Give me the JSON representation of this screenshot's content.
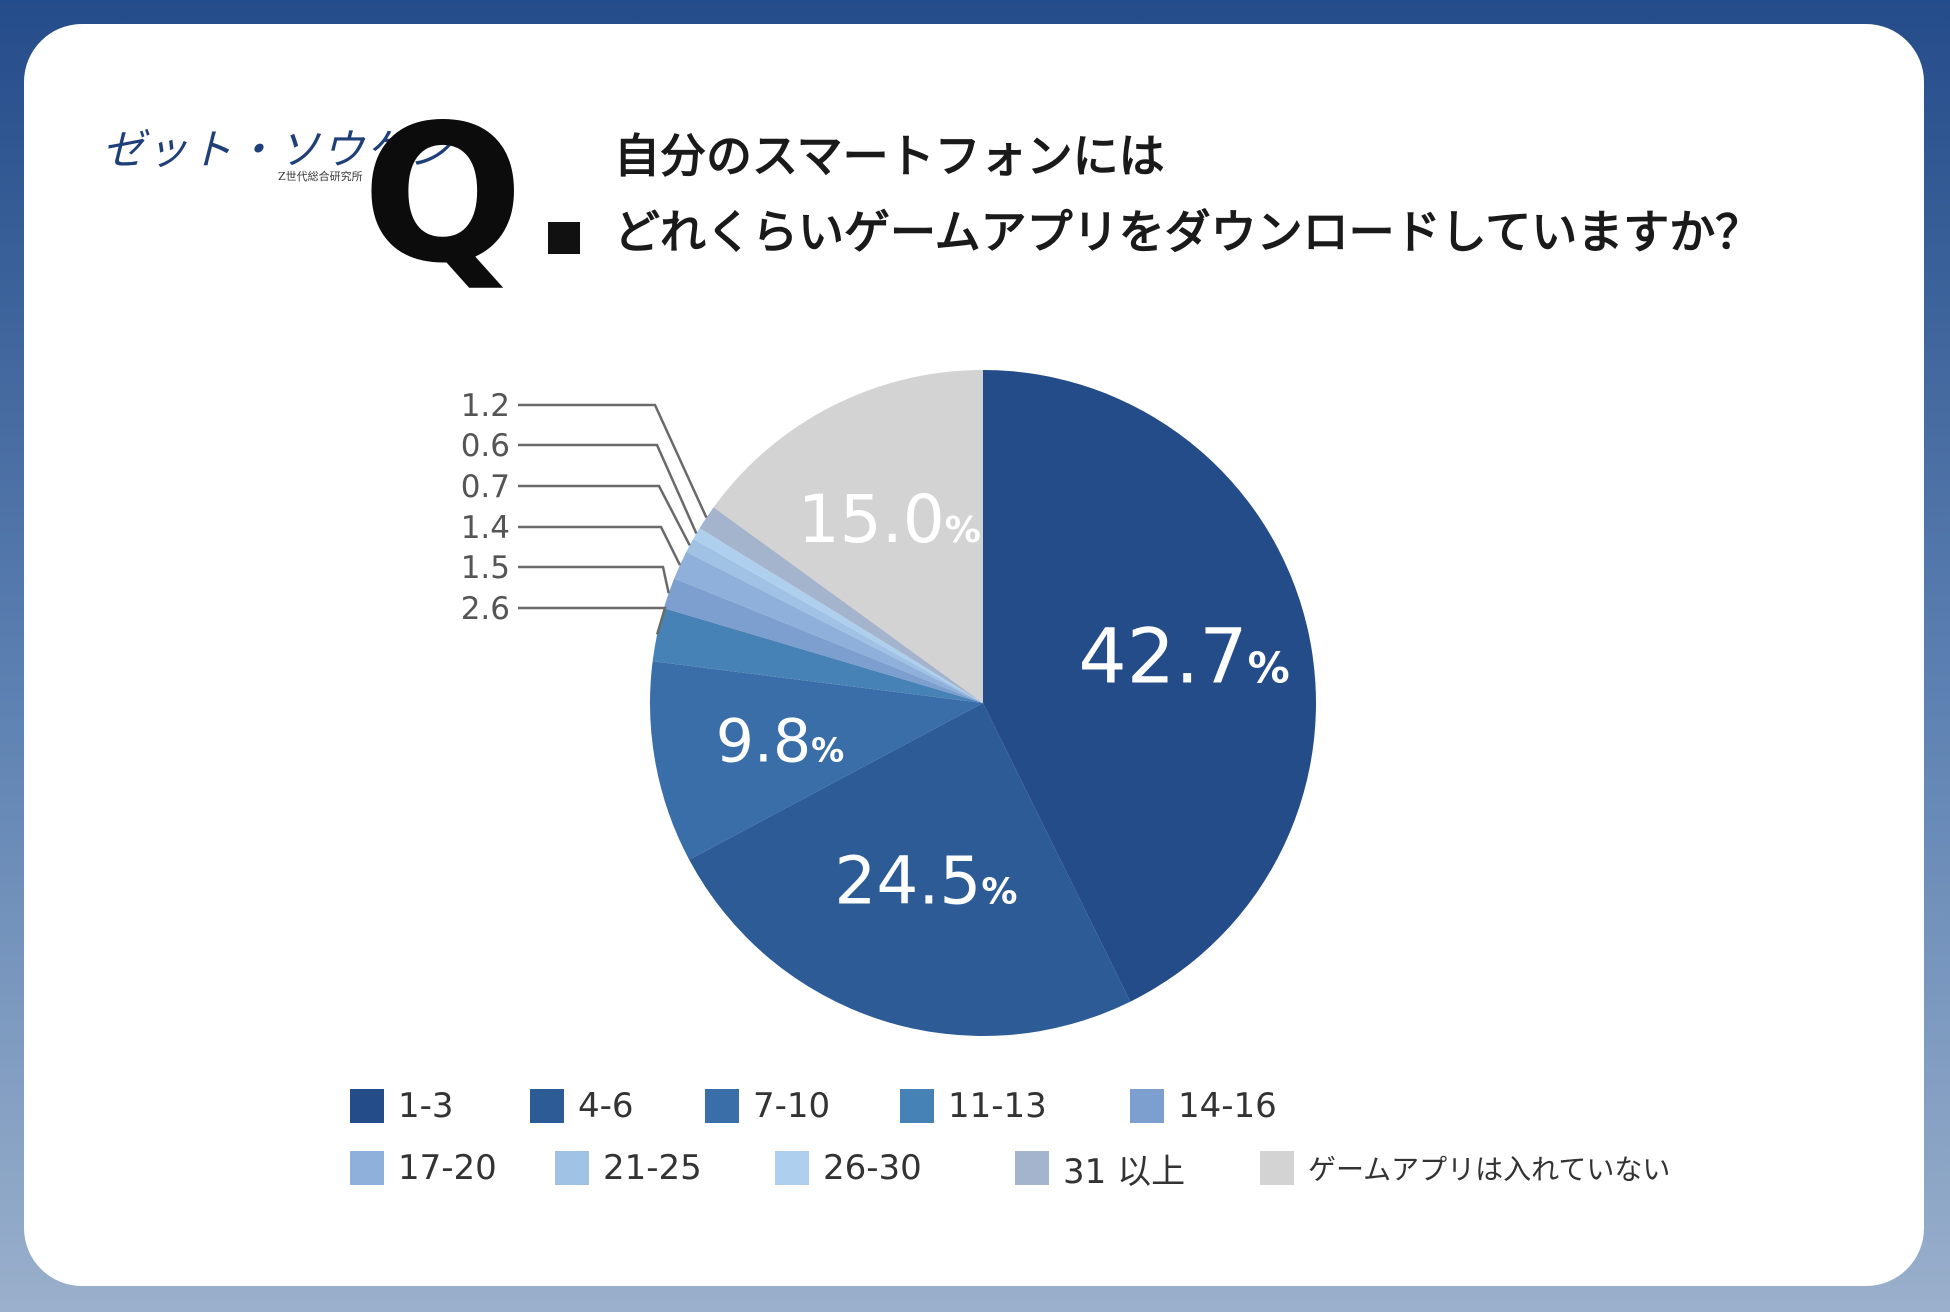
{
  "branding": {
    "logo_text": "ゼット・ソウケン",
    "logo_subtext": "Z世代総合研究所"
  },
  "question": {
    "mark": "Q",
    "line1": "自分のスマートフォンには",
    "line2": "どれくらいゲームアプリをダウンロードしていますか？"
  },
  "colors": {
    "frame_top": "#254c8a",
    "frame_bottom": "#9ab0cc"
  },
  "chart_data": {
    "type": "pie",
    "unit": "%",
    "start_direction": "top",
    "direction": "clockwise",
    "slices": [
      {
        "label": "1-3",
        "value": 42.7,
        "color": "#244c89",
        "display": "42.7"
      },
      {
        "label": "4-6",
        "value": 24.5,
        "color": "#2d5b96",
        "display": "24.5"
      },
      {
        "label": "7-10",
        "value": 9.8,
        "color": "#3a6ea9",
        "display": "9.8"
      },
      {
        "label": "11-13",
        "value": 2.6,
        "color": "#4682b6",
        "display": "2.6"
      },
      {
        "label": "14-16",
        "value": 1.5,
        "color": "#7d9fcf",
        "display": "1.5"
      },
      {
        "label": "17-20",
        "value": 1.4,
        "color": "#8eb0da",
        "display": "1.4"
      },
      {
        "label": "21-25",
        "value": 0.7,
        "color": "#9fc2e5",
        "display": "0.7"
      },
      {
        "label": "26-30",
        "value": 0.6,
        "color": "#aed0ee",
        "display": "0.6"
      },
      {
        "label": "31 以上",
        "value": 1.2,
        "color": "#a4b4cd",
        "display": "1.2"
      },
      {
        "label": "ゲームアプリは入れていない",
        "value": 15.0,
        "color": "#d3d3d3",
        "display": "15.0"
      }
    ],
    "legend_placement": "bottom"
  }
}
